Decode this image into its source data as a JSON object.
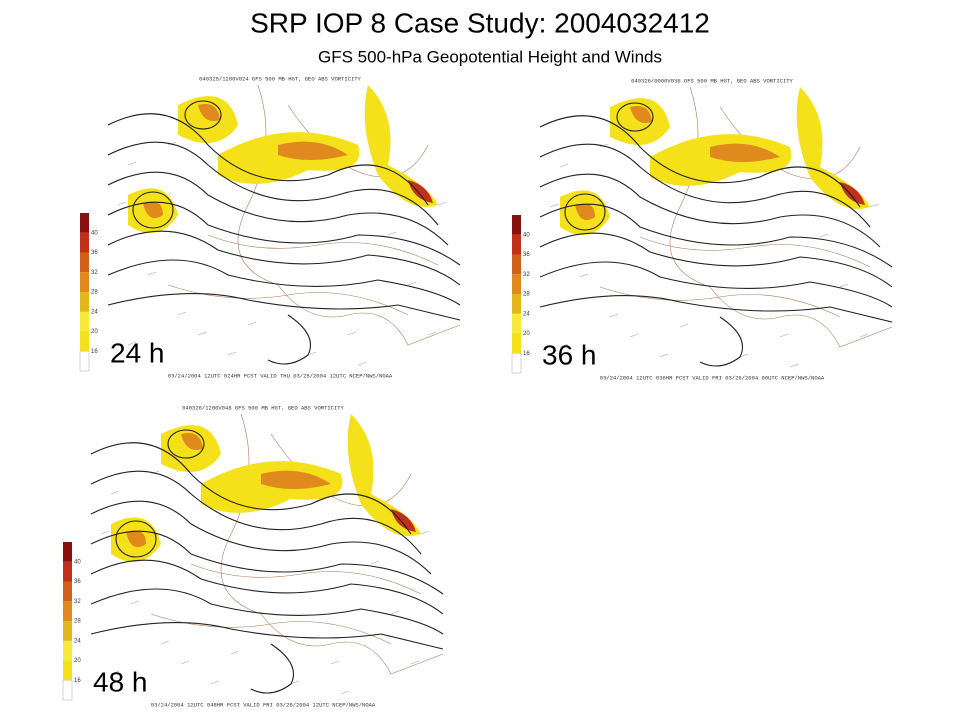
{
  "title": "SRP IOP 8 Case Study: 2004032412",
  "subtitle": "GFS 500-hPa Geopotential Height and Winds",
  "colorbar_ticks": [
    16,
    20,
    24,
    28,
    32,
    36,
    40
  ],
  "panels": [
    {
      "label": "24 h",
      "header": "040325/1200V024 GFS 500 MB HGT, GEO ABS VORTICITY",
      "footer": "03/24/2004 12UTC 024HR FCST VALID THU 03/25/2004 12UTC NCEP/NWS/NOAA"
    },
    {
      "label": "36 h",
      "header": "040326/0000V036 GFS 500 MB HGT, GEO ABS VORTICITY",
      "footer": "03/24/2004 12UTC 036HR FCST VALID FRI 03/26/2004 00UTC NCEP/NWS/NOAA"
    },
    {
      "label": "48 h",
      "header": "040326/1200V048 GFS 500 MB HGT, GEO ABS VORTICITY",
      "footer": "03/24/2004 12UTC 048HR FCST VALID FRI 03/26/2004 12UTC NCEP/NWS/NOAA"
    }
  ]
}
